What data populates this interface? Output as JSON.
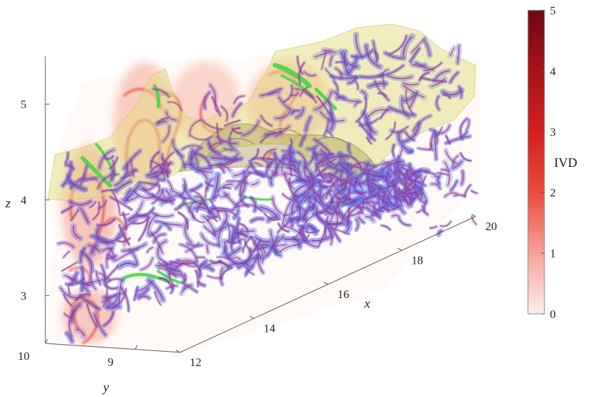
{
  "chart_data": {
    "type": "volume-rendering-3d",
    "title": "",
    "axes": {
      "x": {
        "label": "x",
        "ticks": [
          12,
          14,
          16,
          18,
          20
        ],
        "range": [
          12,
          20
        ]
      },
      "y": {
        "label": "y",
        "ticks": [
          9,
          10
        ],
        "range": [
          8.5,
          10
        ]
      },
      "z": {
        "label": "z",
        "ticks": [
          3,
          4,
          5
        ],
        "range": [
          2.5,
          5.5
        ]
      }
    },
    "colorbar": {
      "label": "IVD",
      "ticks": [
        0,
        1,
        2,
        3,
        4,
        5
      ],
      "range": [
        0,
        5
      ],
      "colors": [
        "#fbeeee",
        "#f6a39a",
        "#ec4a3e",
        "#d2201f",
        "#a8111a",
        "#6d0a12"
      ]
    },
    "colors": {
      "vortex_tubes": "#6670ee",
      "vortex_cores": "#e02030",
      "green_structures": "#3fd63f",
      "interface_surface": "#e3dc82"
    }
  }
}
